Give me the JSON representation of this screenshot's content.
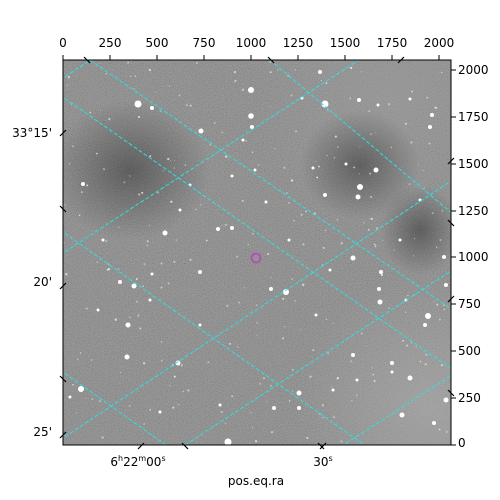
{
  "figure": {
    "xlabel": "pos.eq.ra",
    "pixel_x_ticks": [
      "0",
      "250",
      "500",
      "750",
      "1000",
      "1250",
      "1500",
      "1750",
      "2000"
    ],
    "pixel_y_ticks": [
      "2000",
      "1750",
      "1500",
      "1250",
      "1000",
      "750",
      "500",
      "250",
      "0"
    ],
    "dec_ticks": [
      "33°15'",
      "20'",
      "25'"
    ],
    "ra_ticks": [
      "6h22m00s",
      "30s"
    ],
    "colors": {
      "grid": "#2ee0e0",
      "target_marker": "#c040c0",
      "image_background": "#707070"
    },
    "image": "grayscale astronomical sky image with white point-like stars",
    "target_marker_shape": "circle"
  }
}
